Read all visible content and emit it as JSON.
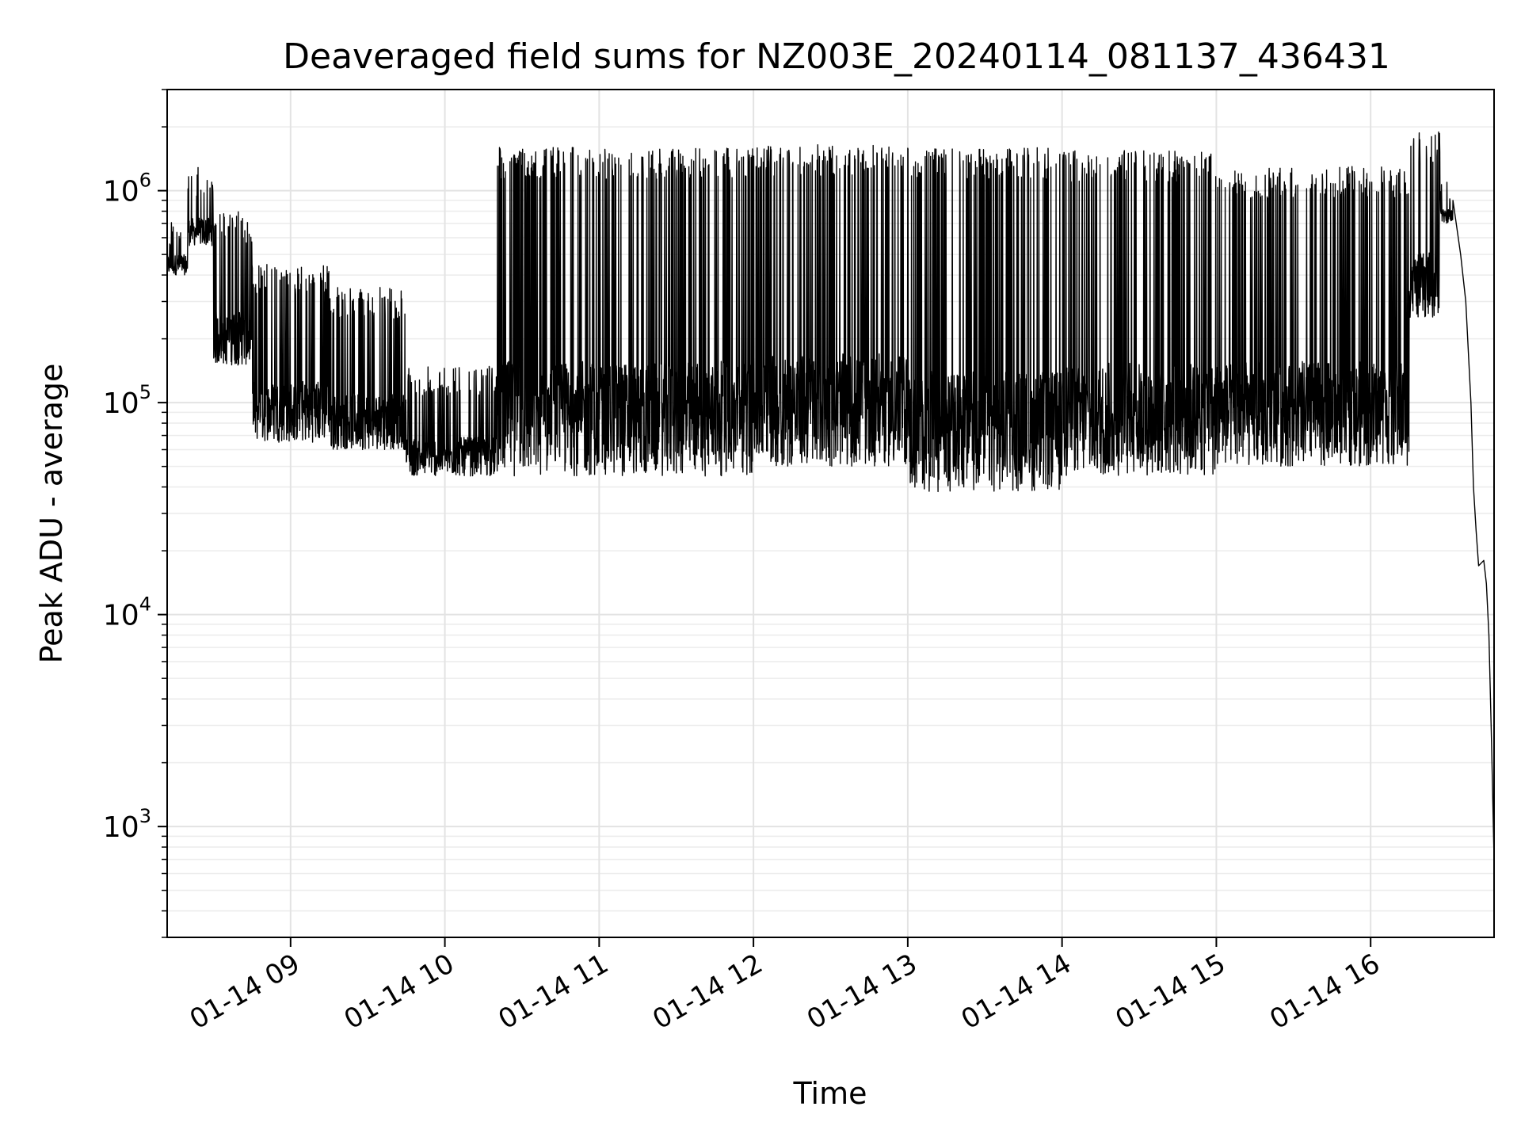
{
  "chart_data": {
    "type": "line",
    "title": "Deaveraged field sums for NZ003E_20240114_081137_436431",
    "xlabel": "Time",
    "ylabel": "Peak ADU - average",
    "yscale": "log",
    "ylim": [
      300,
      3000000
    ],
    "xlim": [
      "2024-01-14 08:12",
      "2024-01-14 16:48"
    ],
    "grid": true,
    "x_ticks": [
      {
        "t": "2024-01-14 09:00",
        "label": "01-14 09"
      },
      {
        "t": "2024-01-14 10:00",
        "label": "01-14 10"
      },
      {
        "t": "2024-01-14 11:00",
        "label": "01-14 11"
      },
      {
        "t": "2024-01-14 12:00",
        "label": "01-14 12"
      },
      {
        "t": "2024-01-14 13:00",
        "label": "01-14 13"
      },
      {
        "t": "2024-01-14 14:00",
        "label": "01-14 14"
      },
      {
        "t": "2024-01-14 15:00",
        "label": "01-14 15"
      },
      {
        "t": "2024-01-14 16:00",
        "label": "01-14 16"
      }
    ],
    "y_ticks": [
      {
        "value": 1000,
        "base": "10",
        "exp": "3"
      },
      {
        "value": 10000,
        "base": "10",
        "exp": "4"
      },
      {
        "value": 100000,
        "base": "10",
        "exp": "5"
      },
      {
        "value": 1000000,
        "base": "10",
        "exp": "6"
      }
    ],
    "series": [
      {
        "color": "#000000",
        "segments": [
          {
            "start": "2024-01-14 08:12",
            "end": "2024-01-14 08:20",
            "low": 400000,
            "high": 750000
          },
          {
            "start": "2024-01-14 08:20",
            "end": "2024-01-14 08:30",
            "low": 550000,
            "high": 1300000
          },
          {
            "start": "2024-01-14 08:30",
            "end": "2024-01-14 08:45",
            "low": 150000,
            "high": 800000
          },
          {
            "start": "2024-01-14 08:45",
            "end": "2024-01-14 09:15",
            "low": 65000,
            "high": 450000
          },
          {
            "start": "2024-01-14 09:15",
            "end": "2024-01-14 09:45",
            "low": 60000,
            "high": 350000
          },
          {
            "start": "2024-01-14 09:45",
            "end": "2024-01-14 10:20",
            "low": 45000,
            "high": 150000
          },
          {
            "start": "2024-01-14 10:20",
            "end": "2024-01-14 12:00",
            "low": 45000,
            "high": 1600000
          },
          {
            "start": "2024-01-14 12:00",
            "end": "2024-01-14 13:00",
            "low": 50000,
            "high": 1650000
          },
          {
            "start": "2024-01-14 13:00",
            "end": "2024-01-14 14:00",
            "low": 38000,
            "high": 1600000
          },
          {
            "start": "2024-01-14 14:00",
            "end": "2024-01-14 15:00",
            "low": 45000,
            "high": 1550000
          },
          {
            "start": "2024-01-14 15:00",
            "end": "2024-01-14 16:15",
            "low": 50000,
            "high": 1300000
          },
          {
            "start": "2024-01-14 16:15",
            "end": "2024-01-14 16:27",
            "low": 250000,
            "high": 1900000
          },
          {
            "start": "2024-01-14 16:27",
            "end": "2024-01-14 16:32",
            "low": 700000,
            "high": 1100000
          }
        ],
        "decay": [
          [
            "2024-01-14 16:32",
            900000
          ],
          [
            "2024-01-14 16:35",
            500000
          ],
          [
            "2024-01-14 16:37",
            300000
          ],
          [
            "2024-01-14 16:39",
            100000
          ],
          [
            "2024-01-14 16:40",
            40000
          ],
          [
            "2024-01-14 16:41",
            25000
          ],
          [
            "2024-01-14 16:42",
            17000
          ],
          [
            "2024-01-14 16:44",
            18000
          ],
          [
            "2024-01-14 16:45",
            14000
          ],
          [
            "2024-01-14 16:46",
            8000
          ],
          [
            "2024-01-14 16:47",
            2500
          ],
          [
            "2024-01-14 16:48",
            700
          ]
        ]
      }
    ]
  }
}
